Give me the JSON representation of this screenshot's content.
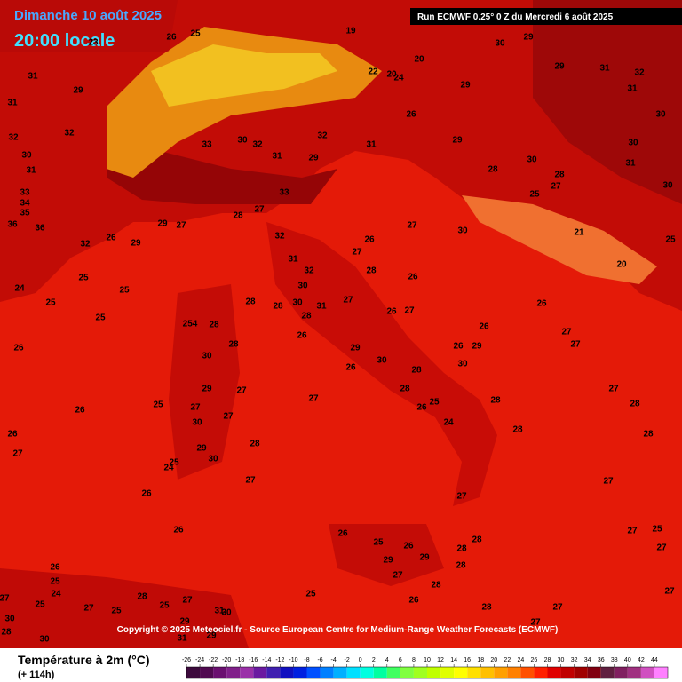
{
  "header": {
    "date": "Dimanche 10 août 2025",
    "time": "20:00 locale",
    "run": "Run ECMWF 0.25° 0 Z du Mercredi 6 août 2025"
  },
  "copyright": "Copyright © 2025 Meteociel.fr - Source European Centre for Medium-Range Weather Forecasts (ECMWF)",
  "legend": {
    "title": "Température à 2m (°C)",
    "subtitle": "(+ 114h)",
    "ticks": [
      -26,
      -24,
      -22,
      -20,
      -18,
      -16,
      -14,
      -12,
      -10,
      -8,
      -6,
      -4,
      -2,
      0,
      2,
      4,
      6,
      8,
      10,
      12,
      14,
      16,
      18,
      20,
      22,
      24,
      26,
      28,
      30,
      32,
      34,
      36,
      38,
      40,
      42,
      44
    ],
    "colors": [
      "#3c0a3c",
      "#500a50",
      "#6a1070",
      "#80208a",
      "#9a30a8",
      "#6a1aa0",
      "#4020b0",
      "#1010c0",
      "#0020e0",
      "#0050ff",
      "#0080ff",
      "#00b0ff",
      "#00e0ff",
      "#00ffe0",
      "#00ffa0",
      "#40ff60",
      "#80ff40",
      "#a0ff20",
      "#c0ff00",
      "#e0ff00",
      "#ffff00",
      "#ffe000",
      "#ffc000",
      "#ffa000",
      "#ff8000",
      "#ff5000",
      "#ff2000",
      "#e00000",
      "#c00000",
      "#a00000",
      "#800010",
      "#602040",
      "#802060",
      "#a03080",
      "#d050c0",
      "#ff80ff"
    ]
  },
  "map_labels": [
    26,
    25,
    23,
    31,
    29,
    31,
    32,
    32,
    30,
    31,
    33,
    34,
    35,
    36,
    36,
    32,
    26,
    29,
    29,
    27,
    28,
    27,
    33,
    30,
    32,
    31,
    33,
    29,
    32,
    31,
    20,
    19,
    22,
    24,
    26,
    29,
    20,
    29,
    30,
    29,
    29,
    31,
    32,
    31,
    30,
    30,
    31,
    30,
    28,
    30,
    28,
    25,
    27,
    27,
    30,
    21,
    20,
    25,
    26,
    32,
    31,
    32,
    30,
    30,
    28,
    31,
    27,
    26,
    27,
    28,
    26,
    27,
    28,
    28,
    26,
    254,
    28,
    28,
    30,
    29,
    27,
    27,
    27,
    30,
    25,
    26,
    26,
    27,
    24,
    25,
    25,
    25,
    25,
    26,
    29,
    30,
    28,
    28,
    27,
    26,
    26,
    26,
    29,
    30,
    27,
    27,
    26,
    28,
    24,
    28,
    26,
    25,
    28,
    30,
    29,
    25,
    24,
    27,
    26,
    26,
    27,
    28,
    28,
    28,
    28,
    26,
    28,
    27,
    27,
    27,
    27,
    25,
    27,
    27,
    26,
    25,
    26,
    29,
    29,
    27,
    25,
    28,
    25,
    27,
    31,
    25,
    27,
    26,
    25,
    24,
    25,
    27,
    30,
    28,
    30,
    29,
    29,
    31,
    30,
    28,
    27,
    28
  ]
}
